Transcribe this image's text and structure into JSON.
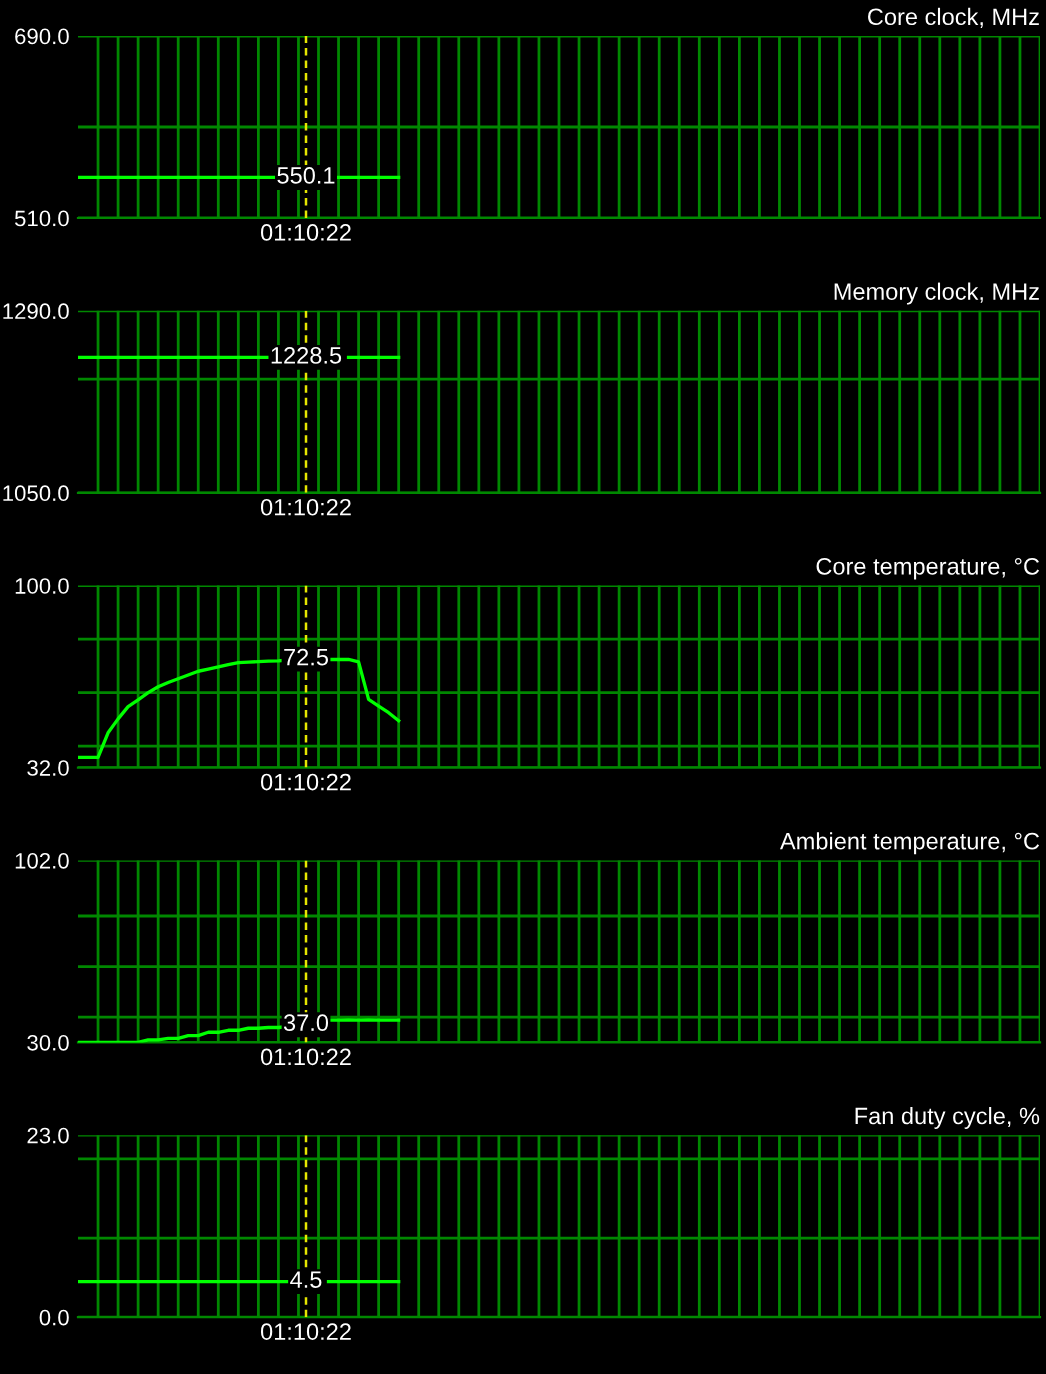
{
  "chart_data": [
    {
      "type": "line",
      "title": "Core clock, MHz",
      "categories": [
        null,
        null,
        null,
        null,
        null,
        null,
        null,
        null,
        null,
        null,
        null,
        null,
        null,
        null,
        null,
        null,
        null,
        null,
        null,
        null,
        null,
        null,
        null,
        null,
        null,
        null,
        null,
        null,
        null,
        null,
        null,
        null,
        null,
        null,
        null,
        null,
        null,
        null,
        null,
        null,
        null,
        null,
        null,
        null,
        null,
        null,
        null,
        null,
        null,
        null,
        null,
        null,
        null,
        null,
        null,
        null,
        null,
        null,
        null,
        null,
        null,
        null,
        null,
        null,
        null,
        null,
        null,
        null,
        null,
        null,
        null,
        null,
        null,
        null,
        null,
        null,
        null,
        null,
        null,
        null,
        null,
        null,
        null,
        null,
        null,
        null,
        null,
        null,
        null,
        null,
        null,
        null,
        null,
        null,
        null,
        null,
        null
      ],
      "series": [
        {
          "color": "#00ff00",
          "values": [
            550.1,
            550.1,
            550.1,
            550.1,
            550.1,
            550.1,
            550.1,
            550.1,
            550.1,
            550.1,
            550.1,
            550.1,
            550.1,
            550.1,
            550.1,
            550.1,
            550.1,
            550.1,
            550.1,
            550.1,
            550.1,
            null,
            null,
            null,
            null,
            null,
            550.1,
            550.1,
            550.1,
            550.1,
            550.1,
            550.1,
            550.1,
            null,
            null,
            null,
            null,
            null,
            null,
            null,
            null,
            null,
            null,
            null,
            null,
            null,
            null,
            null,
            null,
            null,
            null,
            null,
            null,
            null,
            null,
            null,
            null,
            null,
            null,
            null,
            null,
            null,
            null,
            null,
            null,
            null,
            null,
            null,
            null,
            null,
            null,
            null,
            null,
            null,
            null,
            null,
            null,
            null,
            null,
            null,
            null,
            null,
            null,
            null,
            null,
            null,
            null,
            null,
            null,
            null,
            null,
            null,
            null,
            null,
            null,
            null,
            null
          ]
        }
      ],
      "ylim": [
        510,
        690
      ],
      "yticks": [
        {
          "value": 510,
          "label": "510.0"
        },
        {
          "value": 600,
          "label": null
        },
        {
          "value": 690,
          "label": "690.0"
        }
      ],
      "grid": true,
      "annotations": [
        {
          "text": "550.1",
          "y": 550.1
        },
        "01:10:22"
      ]
    },
    {
      "type": "line",
      "title": "Memory clock, MHz",
      "categories": [
        null,
        null,
        null,
        null,
        null,
        null,
        null,
        null,
        null,
        null,
        null,
        null,
        null,
        null,
        null,
        null,
        null,
        null,
        null,
        null,
        null,
        null,
        null,
        null,
        null,
        null,
        null,
        null,
        null,
        null,
        null,
        null,
        null,
        null,
        null,
        null,
        null,
        null,
        null,
        null,
        null,
        null,
        null,
        null,
        null,
        null,
        null,
        null,
        null,
        null,
        null,
        null,
        null,
        null,
        null,
        null,
        null,
        null,
        null,
        null,
        null,
        null,
        null,
        null,
        null,
        null,
        null,
        null,
        null,
        null,
        null,
        null,
        null,
        null,
        null,
        null,
        null,
        null,
        null,
        null,
        null,
        null,
        null,
        null,
        null,
        null,
        null,
        null,
        null,
        null,
        null,
        null,
        null,
        null,
        null,
        null,
        null
      ],
      "series": [
        {
          "color": "#00ff00",
          "values": [
            1228.5,
            1228.5,
            1228.5,
            1228.5,
            1228.5,
            1228.5,
            1228.5,
            1228.5,
            1228.5,
            1228.5,
            1228.5,
            1228.5,
            1228.5,
            1228.5,
            1228.5,
            1228.5,
            1228.5,
            1228.5,
            1228.5,
            1228.5,
            null,
            null,
            null,
            null,
            null,
            null,
            null,
            1228.5,
            1228.5,
            1228.5,
            1228.5,
            1228.5,
            1228.5,
            null,
            null,
            null,
            null,
            null,
            null,
            null,
            null,
            null,
            null,
            null,
            null,
            null,
            null,
            null,
            null,
            null,
            null,
            null,
            null,
            null,
            null,
            null,
            null,
            null,
            null,
            null,
            null,
            null,
            null,
            null,
            null,
            null,
            null,
            null,
            null,
            null,
            null,
            null,
            null,
            null,
            null,
            null,
            null,
            null,
            null,
            null,
            null,
            null,
            null,
            null,
            null,
            null,
            null,
            null,
            null,
            null,
            null,
            null,
            null,
            null,
            null,
            null,
            null
          ]
        }
      ],
      "ylim": [
        1050,
        1290
      ],
      "yticks": [
        {
          "value": 1050,
          "label": "1050.0"
        },
        {
          "value": 1200,
          "label": null
        },
        {
          "value": 1290,
          "label": "1290.0"
        }
      ],
      "grid": true,
      "annotations": [
        {
          "text": "1228.5",
          "y": 1228.5
        },
        "01:10:22"
      ]
    },
    {
      "type": "line",
      "title": "Core temperature, °C",
      "categories": [
        null,
        null,
        null,
        null,
        null,
        null,
        null,
        null,
        null,
        null,
        null,
        null,
        null,
        null,
        null,
        null,
        null,
        null,
        null,
        null,
        null,
        null,
        null,
        null,
        null,
        null,
        null,
        null,
        null,
        null,
        null,
        null,
        null,
        null,
        null,
        null,
        null,
        null,
        null,
        null,
        null,
        null,
        null,
        null,
        null,
        null,
        null,
        null,
        null,
        null,
        null,
        null,
        null,
        null,
        null,
        null,
        null,
        null,
        null,
        null,
        null,
        null,
        null,
        null,
        null,
        null,
        null,
        null,
        null,
        null,
        null,
        null,
        null,
        null,
        null,
        null,
        null,
        null,
        null,
        null,
        null,
        null,
        null,
        null,
        null,
        null,
        null,
        null,
        null,
        null,
        null,
        null,
        null,
        null,
        null,
        null,
        null
      ],
      "series": [
        {
          "color": "#00ff00",
          "values": [
            35.8,
            35.8,
            35.8,
            45,
            50.2,
            54.8,
            57.3,
            60,
            62.2,
            63.8,
            65.2,
            66.6,
            68,
            68.8,
            69.6,
            70.5,
            71.2,
            71.4,
            71.6,
            71.8,
            71.9,
            72.2,
            null,
            null,
            null,
            72.4,
            72.4,
            72.4,
            71.5,
            57.5,
            55,
            52.5,
            49.5,
            null,
            null,
            null,
            null,
            null,
            null,
            null,
            null,
            null,
            null,
            null,
            null,
            null,
            null,
            null,
            null,
            null,
            null,
            null,
            null,
            null,
            null,
            null,
            null,
            null,
            null,
            null,
            null,
            null,
            null,
            null,
            null,
            null,
            null,
            null,
            null,
            null,
            null,
            null,
            null,
            null,
            null,
            null,
            null,
            null,
            null,
            null,
            null,
            null,
            null,
            null,
            null,
            null,
            null,
            null,
            null,
            null,
            null,
            null,
            null,
            null,
            null,
            null,
            null
          ]
        }
      ],
      "ylim": [
        32,
        100
      ],
      "yticks": [
        {
          "value": 32,
          "label": "32.0"
        },
        {
          "value": 40,
          "label": null
        },
        {
          "value": 60,
          "label": null
        },
        {
          "value": 80,
          "label": null
        },
        {
          "value": 100,
          "label": "100.0"
        }
      ],
      "grid": true,
      "annotations": [
        {
          "text": "72.5",
          "y": 72.5
        },
        "01:10:22"
      ]
    },
    {
      "type": "line",
      "title": "Ambient temperature, °C",
      "categories": [
        null,
        null,
        null,
        null,
        null,
        null,
        null,
        null,
        null,
        null,
        null,
        null,
        null,
        null,
        null,
        null,
        null,
        null,
        null,
        null,
        null,
        null,
        null,
        null,
        null,
        null,
        null,
        null,
        null,
        null,
        null,
        null,
        null,
        null,
        null,
        null,
        null,
        null,
        null,
        null,
        null,
        null,
        null,
        null,
        null,
        null,
        null,
        null,
        null,
        null,
        null,
        null,
        null,
        null,
        null,
        null,
        null,
        null,
        null,
        null,
        null,
        null,
        null,
        null,
        null,
        null,
        null,
        null,
        null,
        null,
        null,
        null,
        null,
        null,
        null,
        null,
        null,
        null,
        null,
        null,
        null,
        null,
        null,
        null,
        null,
        null,
        null,
        null,
        null,
        null,
        null,
        null,
        null,
        null,
        null,
        null,
        null
      ],
      "series": [
        {
          "color": "#00ff00",
          "values": [
            30,
            30,
            30,
            30,
            30,
            30,
            30,
            31,
            31,
            31.6,
            31.6,
            32.7,
            32.7,
            34,
            34,
            34.8,
            34.8,
            35.6,
            35.6,
            35.9,
            35.9,
            36.3,
            null,
            null,
            null,
            38.8,
            38.8,
            38.9,
            38.8,
            38.9,
            38.8,
            38.8,
            38.8,
            null,
            null,
            null,
            null,
            null,
            null,
            null,
            null,
            null,
            null,
            null,
            null,
            null,
            null,
            null,
            null,
            null,
            null,
            null,
            null,
            null,
            null,
            null,
            null,
            null,
            null,
            null,
            null,
            null,
            null,
            null,
            null,
            null,
            null,
            null,
            null,
            null,
            null,
            null,
            null,
            null,
            null,
            null,
            null,
            null,
            null,
            null,
            null,
            null,
            null,
            null,
            null,
            null,
            null,
            null,
            null,
            null,
            null,
            null,
            null,
            null,
            null,
            null,
            null
          ]
        }
      ],
      "ylim": [
        30,
        102
      ],
      "yticks": [
        {
          "value": 30,
          "label": "30.0"
        },
        {
          "value": 40,
          "label": null
        },
        {
          "value": 60,
          "label": null
        },
        {
          "value": 80,
          "label": null
        },
        {
          "value": 102,
          "label": "102.0"
        }
      ],
      "grid": true,
      "annotations": [
        {
          "text": "37.0",
          "y": 37
        },
        "01:10:22"
      ]
    },
    {
      "type": "line",
      "title": "Fan duty cycle, %",
      "categories": [
        null,
        null,
        null,
        null,
        null,
        null,
        null,
        null,
        null,
        null,
        null,
        null,
        null,
        null,
        null,
        null,
        null,
        null,
        null,
        null,
        null,
        null,
        null,
        null,
        null,
        null,
        null,
        null,
        null,
        null,
        null,
        null,
        null,
        null,
        null,
        null,
        null,
        null,
        null,
        null,
        null,
        null,
        null,
        null,
        null,
        null,
        null,
        null,
        null,
        null,
        null,
        null,
        null,
        null,
        null,
        null,
        null,
        null,
        null,
        null,
        null,
        null,
        null,
        null,
        null,
        null,
        null,
        null,
        null,
        null,
        null,
        null,
        null,
        null,
        null,
        null,
        null,
        null,
        null,
        null,
        null,
        null,
        null,
        null,
        null,
        null,
        null,
        null,
        null,
        null,
        null,
        null,
        null,
        null,
        null,
        null,
        null
      ],
      "series": [
        {
          "color": "#00ff00",
          "values": [
            4.5,
            4.5,
            4.5,
            4.5,
            4.5,
            4.5,
            4.5,
            4.5,
            4.5,
            4.5,
            4.5,
            4.5,
            4.5,
            4.5,
            4.5,
            4.5,
            4.5,
            4.5,
            4.5,
            4.5,
            4.5,
            4.5,
            null,
            null,
            null,
            4.5,
            4.5,
            4.5,
            4.5,
            4.5,
            4.5,
            4.5,
            4.5,
            null,
            null,
            null,
            null,
            null,
            null,
            null,
            null,
            null,
            null,
            null,
            null,
            null,
            null,
            null,
            null,
            null,
            null,
            null,
            null,
            null,
            null,
            null,
            null,
            null,
            null,
            null,
            null,
            null,
            null,
            null,
            null,
            null,
            null,
            null,
            null,
            null,
            null,
            null,
            null,
            null,
            null,
            null,
            null,
            null,
            null,
            null,
            null,
            null,
            null,
            null,
            null,
            null,
            null,
            null,
            null,
            null,
            null,
            null,
            null,
            null,
            null,
            null,
            null
          ]
        }
      ],
      "ylim": [
        0,
        23
      ],
      "yticks": [
        {
          "value": 0,
          "label": "0.0"
        },
        {
          "value": 10,
          "label": null
        },
        {
          "value": 20,
          "label": null
        },
        {
          "value": 23,
          "label": "23.0"
        }
      ],
      "grid": true,
      "annotations": [
        {
          "text": "4.5",
          "y": 4.5
        },
        "01:10:22"
      ]
    }
  ]
}
